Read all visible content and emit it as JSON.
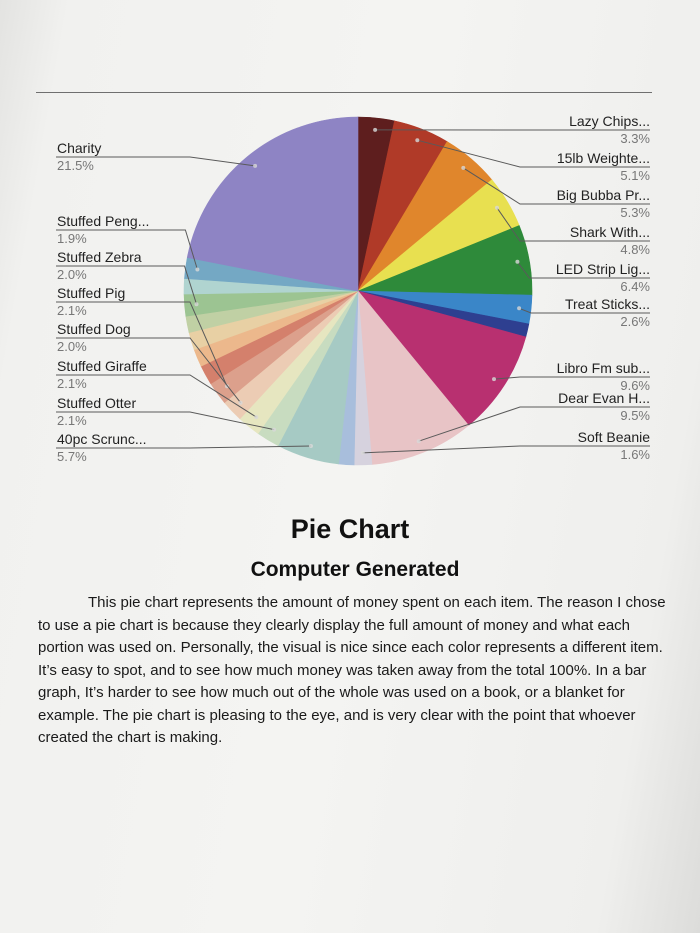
{
  "chart_data": {
    "type": "pie",
    "slices": [
      {
        "label": "Lazy Chips...",
        "pct_label": "3.3%",
        "value": 3.3,
        "color": "#5e1e1e",
        "side": "right"
      },
      {
        "label": "15lb Weighte...",
        "pct_label": "5.1%",
        "value": 5.1,
        "color": "#b03a28",
        "side": "right"
      },
      {
        "label": "Big Bubba Pr...",
        "pct_label": "5.3%",
        "value": 5.3,
        "color": "#e0862c",
        "side": "right"
      },
      {
        "label": "Shark With...",
        "pct_label": "4.8%",
        "value": 4.8,
        "color": "#e8e050",
        "side": "right"
      },
      {
        "label": "LED Strip Lig...",
        "pct_label": "6.4%",
        "value": 6.4,
        "color": "#2e8a3a",
        "side": "right"
      },
      {
        "label": "Treat Sticks...",
        "pct_label": "2.6%",
        "value": 2.6,
        "color": "#3a86c8",
        "side": "right"
      },
      {
        "label": "",
        "pct_label": "",
        "value": 1.2,
        "color": "#2e3f90",
        "side": "none"
      },
      {
        "label": "Libro Fm sub...",
        "pct_label": "9.6%",
        "value": 9.6,
        "color": "#b83070",
        "side": "right"
      },
      {
        "label": "Dear Evan H...",
        "pct_label": "9.5%",
        "value": 9.5,
        "color": "#e8c4c6",
        "side": "right"
      },
      {
        "label": "Soft Beanie",
        "pct_label": "1.6%",
        "value": 1.6,
        "color": "#d6d2de",
        "side": "right"
      },
      {
        "label": "",
        "pct_label": "",
        "value": 1.4,
        "color": "#a8bedc",
        "side": "none"
      },
      {
        "label": "40pc Scrunc...",
        "pct_label": "5.7%",
        "value": 5.7,
        "color": "#a6cac4",
        "side": "left"
      },
      {
        "label": "Stuffed Otter",
        "pct_label": "2.1%",
        "value": 2.1,
        "color": "#c8dcc0",
        "side": "left"
      },
      {
        "label": "Stuffed Giraffe",
        "pct_label": "2.1%",
        "value": 2.1,
        "color": "#e6e6c0",
        "side": "left"
      },
      {
        "label": "Stuffed Dog",
        "pct_label": "2.0%",
        "value": 2.0,
        "color": "#ecccb4",
        "side": "left"
      },
      {
        "label": "Stuffed Pig",
        "pct_label": "2.1%",
        "value": 2.1,
        "color": "#dca08c",
        "side": "left"
      },
      {
        "label": "",
        "pct_label": "",
        "value": 1.8,
        "color": "#d4806c",
        "side": "none"
      },
      {
        "label": "",
        "pct_label": "",
        "value": 1.6,
        "color": "#ecb88c",
        "side": "none"
      },
      {
        "label": "",
        "pct_label": "",
        "value": 1.6,
        "color": "#e8d0a4",
        "side": "none"
      },
      {
        "label": "",
        "pct_label": "",
        "value": 1.5,
        "color": "#c0d0a4",
        "side": "none"
      },
      {
        "label": "Stuffed Zebra",
        "pct_label": "2.0%",
        "value": 2.0,
        "color": "#9cc492",
        "side": "left"
      },
      {
        "label": "",
        "pct_label": "",
        "value": 1.4,
        "color": "#b0d4d0",
        "side": "none"
      },
      {
        "label": "Stuffed Peng...",
        "pct_label": "1.9%",
        "value": 1.9,
        "color": "#74a8c4",
        "side": "left"
      },
      {
        "label": "Charity",
        "pct_label": "21.5%",
        "value": 21.5,
        "color": "#8e84c4",
        "side": "left"
      }
    ]
  },
  "page": {
    "title": "Pie Chart",
    "subtitle": "Computer Generated",
    "body": "This pie chart represents the amount of money spent on each item. The reason I chose to use a pie chart is because they clearly display the full amount of money and what each portion was used on. Personally, the visual is nice since each color represents a different item. It’s easy to spot, and to see how much money was taken away from the total 100%. In a bar graph, It’s harder to see how much out of the whole was used on a book, or a blanket for example. The pie chart is pleasing to the eye, and is very clear with the point that whoever created the chart is making."
  }
}
